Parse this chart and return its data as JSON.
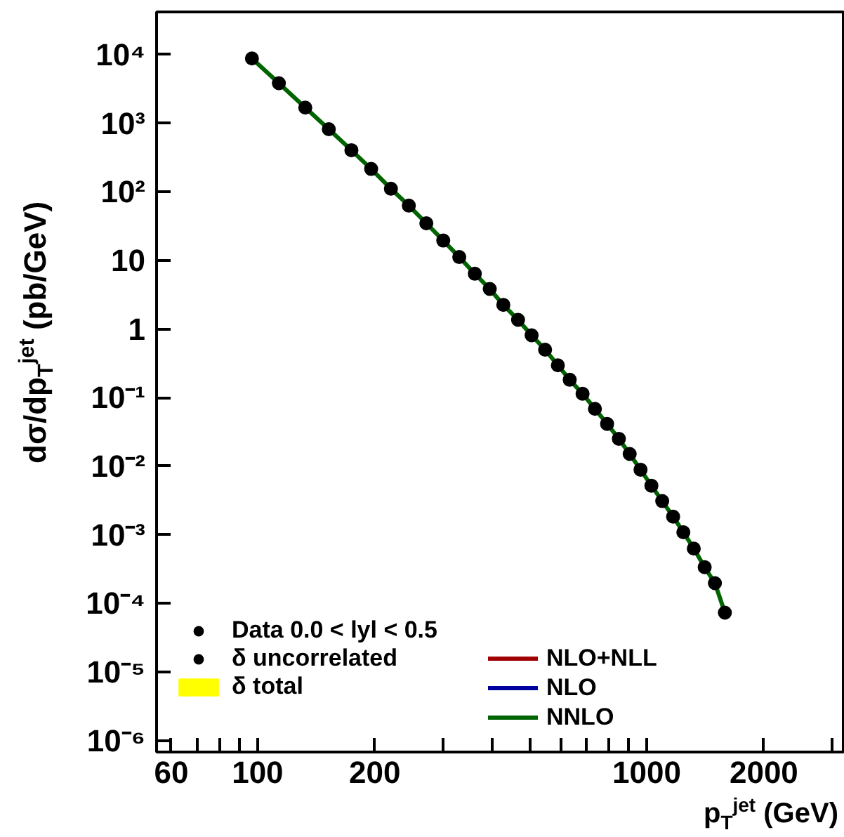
{
  "chart_data": {
    "type": "line",
    "xlabel": "p$_{T}$$^{jet}$ (GeV)",
    "ylabel": "dσ/dp$_{T}$$^{jet}$ (pb/GeV)",
    "log": "xy",
    "grid": false,
    "legend": "bottom left",
    "xlim": [
      55,
      3200
    ],
    "ylim": [
      6.8e-07,
      42000
    ],
    "xticks": [
      60,
      {
        "value": 70,
        "label": null
      },
      {
        "value": 80,
        "label": null
      },
      {
        "value": 90,
        "label": null
      },
      100,
      200,
      {
        "value": 300,
        "label": null
      },
      {
        "value": 400,
        "label": null
      },
      {
        "value": 500,
        "label": null
      },
      {
        "value": 600,
        "label": null
      },
      {
        "value": 700,
        "label": null
      },
      {
        "value": 800,
        "label": null
      },
      {
        "value": 900,
        "label": null
      },
      1000,
      2000,
      {
        "value": 3000,
        "label": null
      }
    ],
    "yticks": [
      {
        "value": 1e-06,
        "label": "10⁻⁶"
      },
      {
        "value": 1e-05,
        "label": "10⁻⁵"
      },
      {
        "value": 0.0001,
        "label": "10⁻⁴"
      },
      {
        "value": 0.001,
        "label": "10⁻³"
      },
      {
        "value": 0.01,
        "label": "10⁻²"
      },
      {
        "value": 0.1,
        "label": "10⁻¹"
      },
      1,
      10,
      {
        "value": 100,
        "label": "10²"
      },
      {
        "value": 1000,
        "label": "10³"
      },
      {
        "value": 10000,
        "label": "10⁴"
      }
    ],
    "x": [
      96.7,
      113.4,
      132.6,
      152.4,
      174.2,
      195.8,
      220.1,
      244.7,
      271.4,
      300,
      329.8,
      361.6,
      395,
      428,
      467,
      506,
      548,
      591,
      634,
      684,
      736,
      791,
      848,
      904,
      964,
      1028,
      1096,
      1169,
      1242,
      1321,
      1409,
      1497,
      1588
    ],
    "series": [
      {
        "name": "Data 0.0 < lyl < 0.5",
        "type": "scatter",
        "marker": "circle",
        "color": "#000000",
        "values": [
          8800,
          3840,
          1690,
          820,
          405,
          216,
          111,
          63,
          34.8,
          19.5,
          11.2,
          6.4,
          3.84,
          2.25,
          1.36,
          0.81,
          0.5,
          0.296,
          0.182,
          0.114,
          0.0686,
          0.0414,
          0.0251,
          0.0151,
          0.0089,
          0.0052,
          0.0031,
          0.00184,
          0.00109,
          0.00063,
          0.000337,
          0.000197,
          7.33e-05
        ]
      },
      {
        "name": "δ uncorrelated",
        "type": "scatter",
        "marker": "circle",
        "color": "#000000",
        "values": [
          null,
          null,
          null,
          null,
          null,
          null,
          null,
          null,
          null,
          null,
          null,
          null,
          null,
          null,
          null,
          null,
          null,
          null,
          null,
          null,
          null,
          null,
          null,
          null,
          null,
          null,
          null,
          null,
          null,
          null,
          null,
          null,
          null
        ]
      },
      {
        "name": "δ total",
        "type": "area",
        "color": "#ffff00",
        "values": [
          null,
          null,
          null,
          null,
          null,
          null,
          null,
          null,
          null,
          null,
          null,
          null,
          null,
          null,
          null,
          null,
          null,
          null,
          null,
          null,
          null,
          null,
          null,
          null,
          null,
          null,
          null,
          null,
          null,
          null,
          null,
          null,
          null
        ]
      },
      {
        "name": "NLO+NLL",
        "type": "line",
        "color": "#a00000",
        "values": [
          null,
          null,
          null,
          null,
          null,
          null,
          null,
          null,
          null,
          null,
          null,
          null,
          null,
          null,
          null,
          null,
          null,
          null,
          null,
          null,
          null,
          null,
          null,
          null,
          null,
          null,
          null,
          null,
          null,
          null,
          null,
          null,
          null
        ]
      },
      {
        "name": "NLO",
        "type": "line",
        "color": "#0000a0",
        "values": [
          null,
          null,
          null,
          null,
          null,
          null,
          null,
          null,
          null,
          null,
          null,
          null,
          null,
          null,
          null,
          null,
          null,
          null,
          null,
          null,
          null,
          null,
          null,
          null,
          null,
          null,
          null,
          null,
          null,
          null,
          null,
          null,
          null
        ]
      },
      {
        "name": "NNLO",
        "color": "#006400",
        "values": [
          8800,
          3840,
          1690,
          820,
          405,
          216,
          111,
          63,
          34.8,
          19.5,
          11.2,
          6.4,
          3.84,
          2.25,
          1.36,
          0.81,
          0.5,
          0.296,
          0.182,
          0.114,
          0.0686,
          0.0414,
          0.0251,
          0.0151,
          0.0089,
          0.0052,
          0.0031,
          0.00184,
          0.00109,
          0.00063,
          0.000337,
          0.000197,
          7.33e-05
        ]
      }
    ]
  }
}
